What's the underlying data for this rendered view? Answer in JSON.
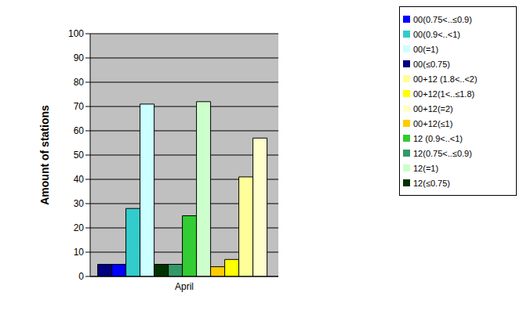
{
  "chart_data": {
    "type": "bar",
    "y_label": "Amount of stations",
    "categories": [
      "April"
    ],
    "series": [
      {
        "name": "00(≤0.75)",
        "color": "#000080",
        "values": [
          5
        ]
      },
      {
        "name": "00(0.75<..≤0.9)",
        "color": "#0000ff",
        "values": [
          5
        ]
      },
      {
        "name": "00(0.9<..<1)",
        "color": "#33cccc",
        "values": [
          28
        ]
      },
      {
        "name": "00(=1)",
        "color": "#ccffff",
        "values": [
          71
        ]
      },
      {
        "name": "12(≤0.75)",
        "color": "#003300",
        "values": [
          5
        ]
      },
      {
        "name": "12(0.75<..≤0.9)",
        "color": "#339966",
        "values": [
          5
        ]
      },
      {
        "name": "12 (0.9<..<1)",
        "color": "#33cc33",
        "values": [
          25
        ]
      },
      {
        "name": "12(=1)",
        "color": "#ccffcc",
        "values": [
          72
        ]
      },
      {
        "name": "00+12(≤1)",
        "color": "#ffcc00",
        "values": [
          4
        ]
      },
      {
        "name": "00+12(1<..≤1.8)",
        "color": "#ffff00",
        "values": [
          7
        ]
      },
      {
        "name": "00+12 (1.8<..<2)",
        "color": "#ffff99",
        "values": [
          41
        ]
      },
      {
        "name": "00+12(=2)",
        "color": "#ffffcc",
        "values": [
          57
        ]
      }
    ],
    "ylim": [
      0,
      100
    ],
    "yticks": [
      0,
      10,
      20,
      30,
      40,
      50,
      60,
      70,
      80,
      90,
      100
    ],
    "grid": true,
    "legend": "right"
  }
}
